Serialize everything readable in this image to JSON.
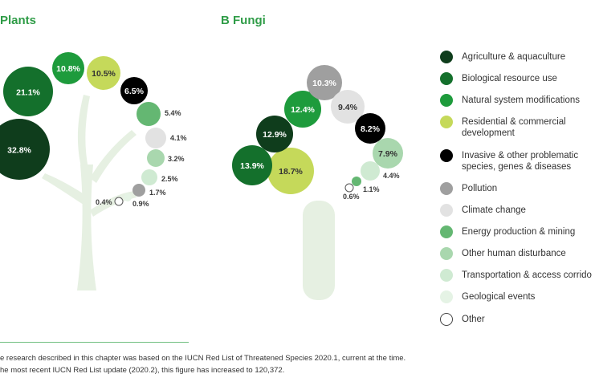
{
  "colors": {
    "Agriculture & aquaculture": "#0f3d1c",
    "Biological resource use": "#14702c",
    "Natural system modifications": "#1e9b3c",
    "Residential & commercial development": "#c5d95a",
    "Invasive & other problematic species, genes & diseases": "#000000",
    "Pollution": "#9f9f9f",
    "Climate change": "#e2e2e2",
    "Energy production & mining": "#64b772",
    "Other human disturbance": "#a9d7ae",
    "Transportation & access corridors": "#cfead2",
    "Geological events": "#e5f3e5",
    "Other": "#ffffff"
  },
  "tree_color": "#e6f0e2",
  "chart_data": [
    {
      "type": "bubble",
      "title": "Plants",
      "series": [
        {
          "category": "Agriculture & aquaculture",
          "value": 32.8,
          "label": "32.8%"
        },
        {
          "category": "Biological resource use",
          "value": 21.1,
          "label": "21.1%"
        },
        {
          "category": "Natural system modifications",
          "value": 10.8,
          "label": "10.8%"
        },
        {
          "category": "Residential & commercial development",
          "value": 10.5,
          "label": "10.5%"
        },
        {
          "category": "Invasive & other problematic species, genes & diseases",
          "value": 6.5,
          "label": "6.5%"
        },
        {
          "category": "Energy production & mining",
          "value": 5.4,
          "label": "5.4%"
        },
        {
          "category": "Climate change",
          "value": 4.1,
          "label": "4.1%"
        },
        {
          "category": "Other human disturbance",
          "value": 3.2,
          "label": "3.2%"
        },
        {
          "category": "Transportation & access corridors",
          "value": 2.5,
          "label": "2.5%"
        },
        {
          "category": "Pollution",
          "value": 1.7,
          "label": "1.7%"
        },
        {
          "category": "Geological events",
          "value": 0.9,
          "label": "0.9%"
        },
        {
          "category": "Other",
          "value": 0.4,
          "label": "0.4%"
        }
      ]
    },
    {
      "type": "bubble",
      "title": "B Fungi",
      "series": [
        {
          "category": "Residential & commercial development",
          "value": 18.7,
          "label": "18.7%"
        },
        {
          "category": "Biological resource use",
          "value": 13.9,
          "label": "13.9%"
        },
        {
          "category": "Agriculture & aquaculture",
          "value": 12.9,
          "label": "12.9%"
        },
        {
          "category": "Natural system modifications",
          "value": 12.4,
          "label": "12.4%"
        },
        {
          "category": "Pollution",
          "value": 10.3,
          "label": "10.3%"
        },
        {
          "category": "Climate change",
          "value": 9.4,
          "label": "9.4%"
        },
        {
          "category": "Invasive & other problematic species, genes & diseases",
          "value": 8.2,
          "label": "8.2%"
        },
        {
          "category": "Other human disturbance",
          "value": 7.9,
          "label": "7.9%"
        },
        {
          "category": "Transportation & access corridors",
          "value": 4.4,
          "label": "4.4%"
        },
        {
          "category": "Energy production & mining",
          "value": 1.1,
          "label": "1.1%"
        },
        {
          "category": "Other",
          "value": 0.6,
          "label": "0.6%"
        }
      ]
    }
  ],
  "legend": [
    {
      "label": "Agriculture & aquaculture",
      "color": "#0f3d1c"
    },
    {
      "label": "Biological resource use",
      "color": "#14702c"
    },
    {
      "label": "Natural system modifications",
      "color": "#1e9b3c"
    },
    {
      "label": "Residential & commercial\ndevelopment",
      "color": "#c5d95a"
    },
    {
      "label": "Invasive & other problematic\nspecies, genes & diseases",
      "color": "#000000"
    },
    {
      "label": "Pollution",
      "color": "#9f9f9f"
    },
    {
      "label": "Climate change",
      "color": "#e2e2e2"
    },
    {
      "label": "Energy production & mining",
      "color": "#64b772"
    },
    {
      "label": "Other human disturbance",
      "color": "#a9d7ae"
    },
    {
      "label": "Transportation & access corrido",
      "color": "#cfead2"
    },
    {
      "label": "Geological events",
      "color": "#e5f3e5"
    },
    {
      "label": "Other",
      "color": "#ffffff"
    }
  ],
  "footnotes": [
    "e research described in this chapter was based on the IUCN Red List of Threatened Species 2020.1, current at the time.",
    "he most recent IUCN Red List update (2020.2), this figure has increased to 120,372."
  ]
}
